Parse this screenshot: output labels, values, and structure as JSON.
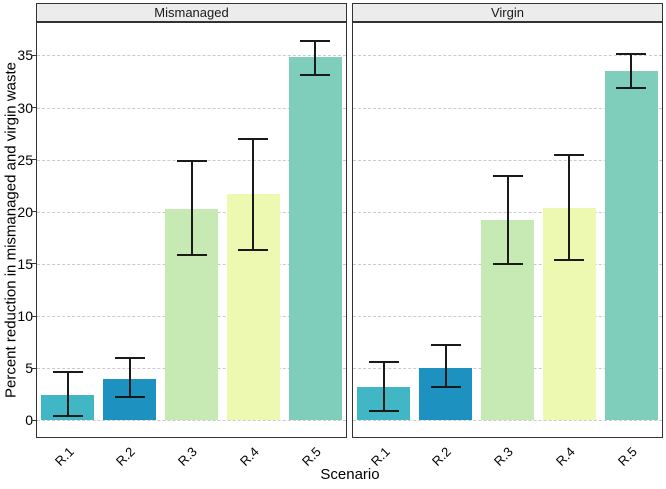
{
  "chart_data": {
    "type": "bar",
    "title": "",
    "xlabel": "Scenario",
    "ylabel": "Percent reduction in mismanaged and virgin waste",
    "categories": [
      "R.1",
      "R.2",
      "R.3",
      "R.4",
      "R.5"
    ],
    "bar_colors": [
      "#41b6c4",
      "#1d91c0",
      "#c7e9b4",
      "#edf8b1",
      "#7fcdbb"
    ],
    "ylim": [
      -1.6,
      38.1
    ],
    "yticks": [
      0,
      5,
      10,
      15,
      20,
      25,
      30,
      35
    ],
    "grid": {
      "horizontal": true,
      "style": "dashed",
      "color": "#cbcbcb"
    },
    "legend": "none",
    "error_bars": true,
    "facets": [
      {
        "label": "Mismanaged",
        "values": [
          2.4,
          4.0,
          20.3,
          21.7,
          34.8
        ],
        "error_low": [
          0.4,
          2.2,
          15.9,
          16.3,
          33.1
        ],
        "error_high": [
          4.6,
          6.0,
          24.9,
          27.0,
          36.4
        ]
      },
      {
        "label": "Virgin",
        "values": [
          3.2,
          5.0,
          19.2,
          20.4,
          33.5
        ],
        "error_low": [
          0.9,
          3.2,
          15.0,
          15.4,
          31.9
        ],
        "error_high": [
          5.6,
          7.2,
          23.4,
          25.4,
          35.1
        ]
      }
    ]
  },
  "styles": {
    "background": "#ffffff",
    "strip_background": "#ececec",
    "panel_border": "#333333",
    "gridline_color": "#cbcbcb",
    "errorbar_color": "#1a1a1a",
    "text_color": "#000000"
  }
}
